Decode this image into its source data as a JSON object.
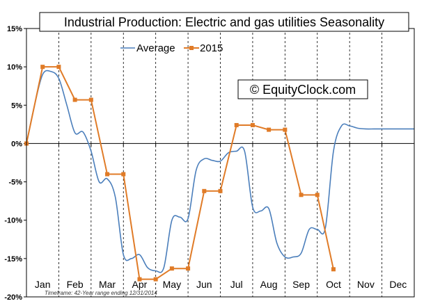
{
  "chart_data": {
    "type": "line",
    "title": "Industrial Production: Electric and gas utilities Seasonality",
    "watermark": "© EquityClock.com",
    "footnote": "Timeframe: 42-Year range ending 12/31/2014",
    "x_labels": [
      "Jan",
      "Feb",
      "Mar",
      "Apr",
      "May",
      "Jun",
      "Jul",
      "Aug",
      "Sep",
      "Oct",
      "Nov",
      "Dec"
    ],
    "y_ticks": [
      "15%",
      "10%",
      "5%",
      "0%",
      "-5%",
      "-10%",
      "-15%",
      "-20%"
    ],
    "ylim": [
      -20,
      15
    ],
    "xlim": [
      0,
      24
    ],
    "grid": {
      "vertical": true,
      "horizontal": false,
      "style": "dashed"
    },
    "legend_position": "top-left",
    "series": [
      {
        "name": "Average",
        "color": "#4a7ebb",
        "marker": "none",
        "x": [
          0,
          0.5,
          1,
          1.5,
          2,
          2.5,
          3,
          3.5,
          4,
          4.5,
          5,
          5.5,
          6,
          6.5,
          7,
          7.5,
          8,
          8.5,
          9,
          9.5,
          10,
          10.5,
          11,
          11.5,
          12,
          12.5,
          13,
          13.5,
          14,
          14.5,
          15,
          15.5,
          16,
          16.5,
          17,
          17.5,
          18,
          18.5,
          19,
          19.5,
          20,
          20.5,
          21,
          21.5,
          22,
          22.5,
          23,
          23.5,
          24
        ],
        "values": [
          0.0,
          5.0,
          9.0,
          9.4,
          8.5,
          5.0,
          1.4,
          1.5,
          -1.0,
          -5.0,
          -4.6,
          -7.0,
          -14.5,
          -15.0,
          -14.5,
          -16.2,
          -16.6,
          -16.2,
          -10.0,
          -9.6,
          -9.8,
          -3.5,
          -2.0,
          -2.2,
          -2.3,
          -1.2,
          -1.0,
          -1.0,
          -8.3,
          -8.8,
          -8.5,
          -13.0,
          -14.8,
          -14.8,
          -14.3,
          -11.2,
          -11.2,
          -11.0,
          -1.0,
          2.3,
          2.3,
          2.0,
          1.9,
          1.9,
          1.9,
          1.9,
          1.9,
          1.9,
          1.9
        ]
      },
      {
        "name": "2015",
        "color": "#e07b27",
        "marker": "square",
        "x": [
          0,
          1,
          2,
          3,
          4,
          5,
          6,
          7,
          8,
          9,
          10,
          11,
          12,
          13,
          14,
          15,
          16,
          17,
          18,
          19
        ],
        "values": [
          0.0,
          10.0,
          10.0,
          5.7,
          5.7,
          -4.0,
          -4.0,
          -17.7,
          -17.7,
          -16.3,
          -16.3,
          -6.2,
          -6.2,
          2.4,
          2.4,
          1.8,
          1.8,
          -6.7,
          -6.7,
          -16.4
        ]
      }
    ]
  }
}
